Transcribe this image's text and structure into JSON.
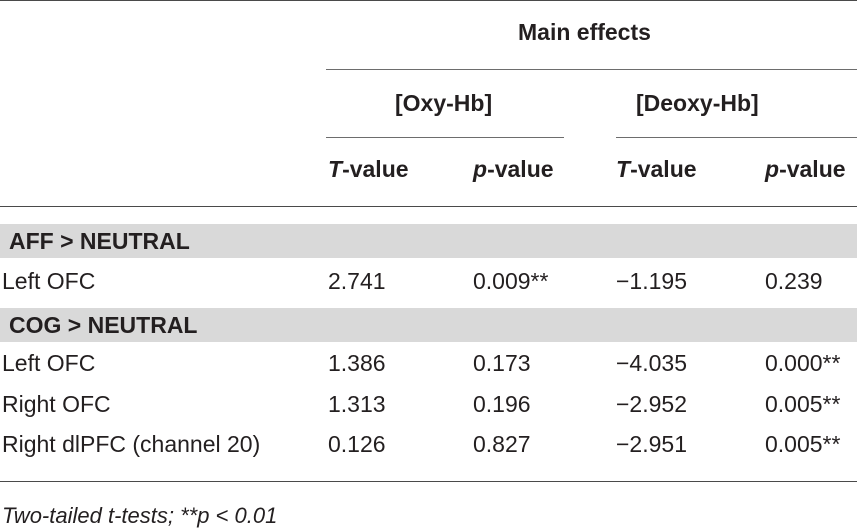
{
  "table": {
    "main_header": "Main effects",
    "group_oxy": "[Oxy-Hb]",
    "group_deoxy": "[Deoxy-Hb]",
    "col_headers": {
      "oxy_t_prefix": "T",
      "oxy_t_suffix": "-value",
      "oxy_p_prefix": "p",
      "oxy_p_suffix": "-value",
      "deoxy_t_prefix": "T",
      "deoxy_t_suffix": "-value",
      "deoxy_p_prefix": "p",
      "deoxy_p_suffix": "-value"
    },
    "sections": [
      {
        "title": "AFF > NEUTRAL",
        "rows": [
          {
            "label": "Left OFC",
            "oxy_t": "2.741",
            "oxy_p": "0.009**",
            "deoxy_t": "−1.195",
            "deoxy_p": "0.239"
          }
        ]
      },
      {
        "title": "COG > NEUTRAL",
        "rows": [
          {
            "label": "Left OFC",
            "oxy_t": "1.386",
            "oxy_p": "0.173",
            "deoxy_t": "−4.035",
            "deoxy_p": "0.000**"
          },
          {
            "label": "Right OFC",
            "oxy_t": "1.313",
            "oxy_p": "0.196",
            "deoxy_t": "−2.952",
            "deoxy_p": "0.005**"
          },
          {
            "label": "Right dlPFC (channel 20)",
            "oxy_t": "0.126",
            "oxy_p": "0.827",
            "deoxy_t": "−2.951",
            "deoxy_p": "0.005**"
          }
        ]
      }
    ],
    "footnote": "Two-tailed t-tests; **p < 0.01"
  }
}
